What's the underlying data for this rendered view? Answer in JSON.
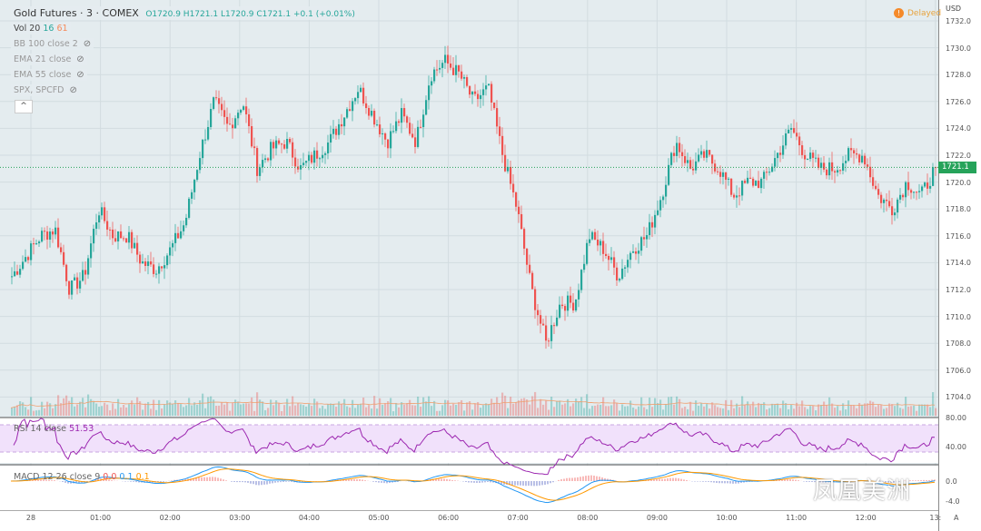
{
  "header": {
    "symbol": "Gold Futures · 3 · COMEX",
    "open": "O1720.9",
    "high": "H1721.1",
    "low": "L1720.9",
    "close": "C1721.1",
    "change": "+0.1 (+0.01%)"
  },
  "indicators": {
    "vol_label": "Vol 20",
    "vol_a": "16",
    "vol_b": "61",
    "bb": "BB 100 close 2",
    "ema21": "EMA 21 close",
    "ema55": "EMA 55 close",
    "spx": "SPX, SPCFD"
  },
  "status": {
    "delayed": "Delayed",
    "currency": "USD",
    "last_price": "1721.1",
    "collapse": "^",
    "auto": "A"
  },
  "price_axis": [
    "1732.0",
    "1730.0",
    "1728.0",
    "1726.0",
    "1724.0",
    "1722.0",
    "1720.0",
    "1718.0",
    "1716.0",
    "1714.0",
    "1712.0",
    "1710.0",
    "1708.0",
    "1706.0",
    "1704.0"
  ],
  "rsi": {
    "label": "RSI 14 close",
    "value": "51.53",
    "ticks": [
      "80.00",
      "40.00"
    ]
  },
  "macd": {
    "label": "MACD 12 26 close 9",
    "hist": "0.0",
    "macd": "0.1",
    "signal": "0.1",
    "ticks": [
      "0.0",
      "-4.0"
    ]
  },
  "time_axis": [
    "28",
    "01:00",
    "02:00",
    "03:00",
    "04:00",
    "05:00",
    "06:00",
    "07:00",
    "08:00",
    "09:00",
    "10:00",
    "11:00",
    "12:00",
    "13:"
  ],
  "watermark": "凤凰美洲",
  "colors": {
    "up": "#26a69a",
    "down": "#ef5350",
    "rsi": "#9c27b0",
    "macd": "#2196f3",
    "signal": "#ff9800"
  },
  "chart_data": {
    "type": "candlestick",
    "price_path": [
      1713,
      1714.5,
      1716,
      1716.5,
      1712,
      1713,
      1718,
      1716,
      1716,
      1714,
      1713.5,
      1715,
      1717,
      1722,
      1726,
      1724,
      1726,
      1721,
      1722.5,
      1723,
      1721,
      1722,
      1723,
      1725,
      1727,
      1725,
      1723,
      1725,
      1723,
      1728,
      1729,
      1728,
      1726,
      1727,
      1722,
      1718,
      1712,
      1708,
      1711,
      1711,
      1716,
      1715,
      1713,
      1715,
      1716,
      1719,
      1723,
      1721,
      1722,
      1721,
      1719,
      1720,
      1720,
      1722,
      1724,
      1722,
      1721,
      1721,
      1722,
      1722,
      1719,
      1718,
      1720,
      1719,
      1721.1
    ],
    "ylim": [
      1703,
      1733
    ]
  }
}
